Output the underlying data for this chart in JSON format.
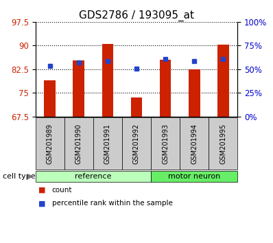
{
  "title": "GDS2786 / 193095_at",
  "samples": [
    "GSM201989",
    "GSM201990",
    "GSM201991",
    "GSM201992",
    "GSM201993",
    "GSM201994",
    "GSM201995"
  ],
  "red_values": [
    79.0,
    85.2,
    90.6,
    73.5,
    85.6,
    82.5,
    90.2
  ],
  "blue_values": [
    83.6,
    84.6,
    85.1,
    82.6,
    85.7,
    85.0,
    85.7
  ],
  "ylim_left": [
    67.5,
    97.5
  ],
  "yticks_left": [
    67.5,
    75,
    82.5,
    90,
    97.5
  ],
  "ytick_labels_left": [
    "67.5",
    "75",
    "82.5",
    "90",
    "97.5"
  ],
  "yticks_right": [
    0,
    25,
    50,
    75,
    100
  ],
  "ytick_labels_right": [
    "0%",
    "25%",
    "50%",
    "75%",
    "100%"
  ],
  "groups": [
    {
      "label": "reference",
      "start": 0,
      "end": 4,
      "color": "#bbffbb"
    },
    {
      "label": "motor neuron",
      "start": 4,
      "end": 7,
      "color": "#66ee66"
    }
  ],
  "cell_type_label": "cell type",
  "legend_items": [
    {
      "label": "count",
      "color": "#cc2200"
    },
    {
      "label": "percentile rank within the sample",
      "color": "#2244cc"
    }
  ],
  "bar_color": "#cc2200",
  "marker_color": "#2244cc",
  "bar_width": 0.4,
  "bg_color": "#ffffff",
  "left_tick_color": "#cc2200",
  "right_tick_color": "#0000cc",
  "title_fontsize": 11,
  "tick_fontsize": 8.5,
  "sample_fontsize": 7,
  "group_fontsize": 8,
  "legend_fontsize": 7.5
}
